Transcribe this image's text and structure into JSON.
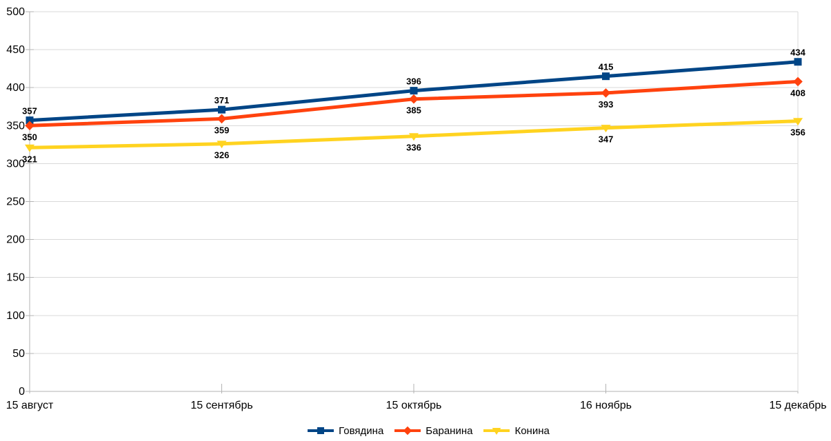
{
  "chart_data": {
    "type": "line",
    "title": "",
    "xlabel": "",
    "ylabel": "",
    "categories": [
      "15 август",
      "15 сентябрь",
      "15 октябрь",
      "16 ноябрь",
      "15 декабрь"
    ],
    "series": [
      {
        "name": "Говядина",
        "values": [
          357,
          371,
          396,
          415,
          434
        ],
        "color": "#004586",
        "marker": "square",
        "label_position": "above"
      },
      {
        "name": "Баранина",
        "values": [
          350,
          359,
          385,
          393,
          408
        ],
        "color": "#ff420e",
        "marker": "diamond",
        "label_position": "below"
      },
      {
        "name": "Конина",
        "values": [
          321,
          326,
          336,
          347,
          356
        ],
        "color": "#ffd320",
        "marker": "triangle-down",
        "label_position": "below"
      }
    ],
    "ylim": [
      0,
      500
    ],
    "ytick_step": 50,
    "ytick_labels": [
      "0",
      "50",
      "100",
      "150",
      "200",
      "250",
      "300",
      "350",
      "400",
      "450",
      "500"
    ],
    "grid": true,
    "legend_position": "bottom",
    "colors": {
      "background": "#ffffff",
      "gridline": "#d9d9d9",
      "axis": "#b3b3b3",
      "tick_label": "#000000",
      "data_label": "#000000",
      "legend_text": "#000000"
    }
  }
}
